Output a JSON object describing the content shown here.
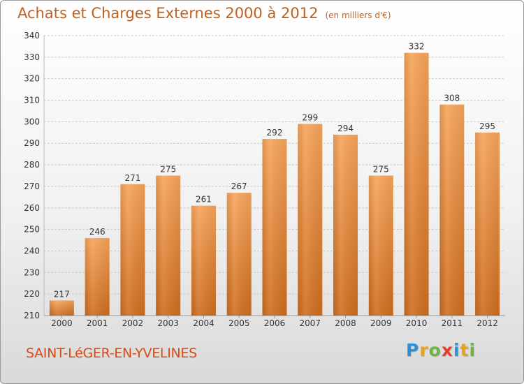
{
  "header": {
    "title": "Achats et Charges Externes 2000 à 2012",
    "unit": "(en milliers d'€)"
  },
  "footer": {
    "commune": "SAINT-LéGER-EN-YVELINES",
    "logo_letters": [
      "P",
      "r",
      "o",
      "x",
      "i",
      "t",
      "i"
    ],
    "logo_colors": [
      "#2d8fd5",
      "#e6a21d",
      "#6cb33f",
      "#e53e2b",
      "#2d8fd5",
      "#e6a21d",
      "#6cb33f"
    ]
  },
  "colors": {
    "accent": "#c2601e",
    "bar_top": "#f7a55a",
    "bar_bottom": "#cf6d1f",
    "grid": "#c9c9c9",
    "axis_text": "#333333"
  },
  "chart_data": {
    "type": "bar",
    "title": "Achats et Charges Externes 2000 à 2012",
    "subtitle": "(en milliers d'€)",
    "categories": [
      "2000",
      "2001",
      "2002",
      "2003",
      "2004",
      "2005",
      "2006",
      "2007",
      "2008",
      "2009",
      "2010",
      "2011",
      "2012"
    ],
    "values": [
      217,
      246,
      271,
      275,
      261,
      267,
      292,
      299,
      294,
      275,
      332,
      308,
      295
    ],
    "ylim": [
      210,
      340
    ],
    "yticks": [
      210,
      220,
      230,
      240,
      250,
      260,
      270,
      280,
      290,
      300,
      310,
      320,
      330,
      340
    ],
    "grid": true,
    "data_labels": true
  }
}
